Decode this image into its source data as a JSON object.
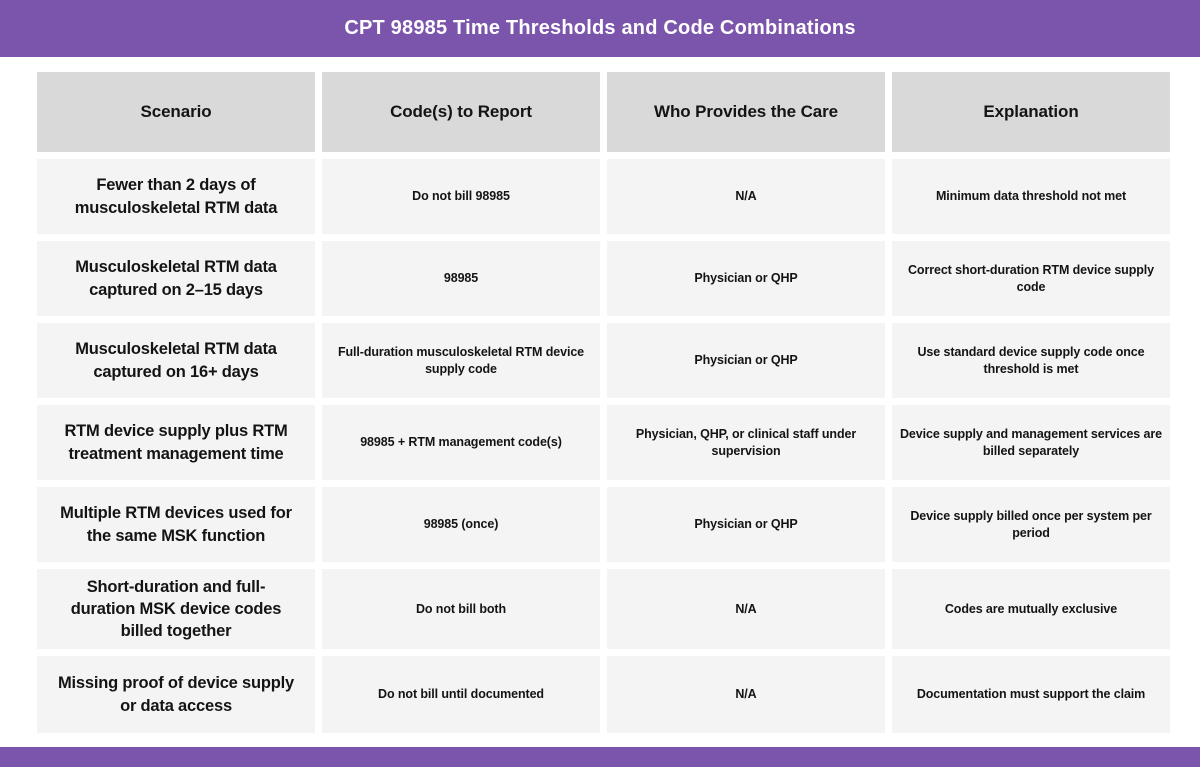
{
  "title": "CPT 98985 Time Thresholds and Code Combinations",
  "theme": {
    "brand_purple": "#7B54AC",
    "header_cell_gray": "#D9D9D9",
    "body_cell_gray": "#F4F4F4",
    "text_color": "#141414"
  },
  "table": {
    "columns": [
      "Scenario",
      "Code(s) to Report",
      "Who Provides the Care",
      "Explanation"
    ],
    "rows": [
      [
        "Fewer than 2 days of musculoskeletal RTM data",
        "Do not bill 98985",
        "N/A",
        "Minimum data threshold not met"
      ],
      [
        "Musculoskeletal RTM data captured on 2–15 days",
        "98985",
        "Physician or QHP",
        "Correct short-duration RTM device supply code"
      ],
      [
        "Musculoskeletal RTM data captured on 16+ days",
        "Full-duration musculoskeletal RTM device supply code",
        "Physician or QHP",
        "Use standard device supply code once threshold is met"
      ],
      [
        "RTM device supply plus RTM treatment management time",
        "98985 + RTM management code(s)",
        "Physician, QHP, or clinical staff under supervision",
        "Device supply and management services are billed separately"
      ],
      [
        "Multiple RTM devices used for the same MSK function",
        "98985 (once)",
        "Physician or QHP",
        "Device supply billed once per system per period"
      ],
      [
        "Short-duration and full-duration MSK device codes billed together",
        "Do not bill both",
        "N/A",
        "Codes are mutually exclusive"
      ],
      [
        "Missing proof of device supply or data access",
        "Do not bill until documented",
        "N/A",
        "Documentation must support the claim"
      ]
    ]
  }
}
